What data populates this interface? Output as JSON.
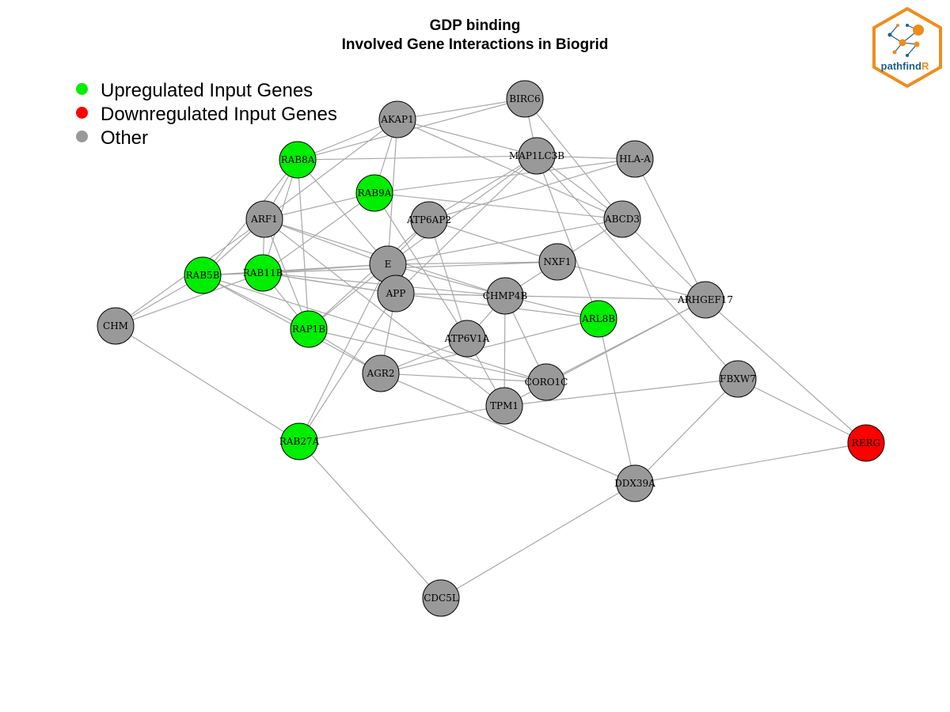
{
  "title": {
    "line1": "GDP binding",
    "line2": "Involved Gene Interactions in Biogrid"
  },
  "legend": [
    {
      "label": "Upregulated Input Genes",
      "color": "#00ee00"
    },
    {
      "label": "Downregulated Input Genes",
      "color": "#ff0000"
    },
    {
      "label": "Other",
      "color": "#999999"
    }
  ],
  "colors": {
    "up": "#00ee00",
    "down": "#ff0000",
    "other": "#999999",
    "edge": "#a8a8a8",
    "logo_orange": "#f08c1e",
    "logo_blue": "#1f5f8b"
  },
  "logo": {
    "text_main": "pathfind",
    "text_accent": "R"
  },
  "nodes": [
    {
      "id": "BIRC6",
      "label": "BIRC6",
      "status": "other"
    },
    {
      "id": "AKAP1",
      "label": "AKAP1",
      "status": "other"
    },
    {
      "id": "RAB8A",
      "label": "RAB8A",
      "status": "up"
    },
    {
      "id": "MAP1LC3B",
      "label": "MAP1LC3B",
      "status": "other"
    },
    {
      "id": "HLA-A",
      "label": "HLA-A",
      "status": "other"
    },
    {
      "id": "RAB9A",
      "label": "RAB9A",
      "status": "up"
    },
    {
      "id": "ARF1",
      "label": "ARF1",
      "status": "other"
    },
    {
      "id": "ATP6AP2",
      "label": "ATP6AP2",
      "status": "other"
    },
    {
      "id": "ABCD3",
      "label": "ABCD3",
      "status": "other"
    },
    {
      "id": "RAB5B",
      "label": "RAB5B",
      "status": "up"
    },
    {
      "id": "RAB11B",
      "label": "RAB11B",
      "status": "up"
    },
    {
      "id": "E",
      "label": "E",
      "status": "other"
    },
    {
      "id": "NXF1",
      "label": "NXF1",
      "status": "other"
    },
    {
      "id": "APP",
      "label": "APP",
      "status": "other"
    },
    {
      "id": "CHMP4B",
      "label": "CHMP4B",
      "status": "other"
    },
    {
      "id": "ARHGEF17",
      "label": "ARHGEF17",
      "status": "other"
    },
    {
      "id": "CHM",
      "label": "CHM",
      "status": "other"
    },
    {
      "id": "RAP1B",
      "label": "RAP1B",
      "status": "up"
    },
    {
      "id": "ARL8B",
      "label": "ARL8B",
      "status": "up"
    },
    {
      "id": "ATP6V1A",
      "label": "ATP6V1A",
      "status": "other"
    },
    {
      "id": "AGR2",
      "label": "AGR2",
      "status": "other"
    },
    {
      "id": "CORO1C",
      "label": "CORO1C",
      "status": "other"
    },
    {
      "id": "FBXW7",
      "label": "FBXW7",
      "status": "other"
    },
    {
      "id": "TPM1",
      "label": "TPM1",
      "status": "other"
    },
    {
      "id": "RAB27A",
      "label": "RAB27A",
      "status": "up"
    },
    {
      "id": "RERG",
      "label": "RERG",
      "status": "down"
    },
    {
      "id": "DDX39A",
      "label": "DDX39A",
      "status": "other"
    },
    {
      "id": "CDC5L",
      "label": "CDC5L",
      "status": "other"
    }
  ],
  "edges": [
    [
      "AKAP1",
      "BIRC6"
    ],
    [
      "AKAP1",
      "RAB8A"
    ],
    [
      "AKAP1",
      "RAB9A"
    ],
    [
      "AKAP1",
      "E"
    ],
    [
      "AKAP1",
      "ARF1"
    ],
    [
      "AKAP1",
      "ABCD3"
    ],
    [
      "AKAP1",
      "MAP1LC3B"
    ],
    [
      "BIRC6",
      "RAB8A"
    ],
    [
      "BIRC6",
      "MAP1LC3B"
    ],
    [
      "BIRC6",
      "ABCD3"
    ],
    [
      "RAB8A",
      "MAP1LC3B"
    ],
    [
      "RAB8A",
      "ARF1"
    ],
    [
      "RAB8A",
      "RAB5B"
    ],
    [
      "RAB8A",
      "RAB11B"
    ],
    [
      "RAB8A",
      "RAP1B"
    ],
    [
      "RAB8A",
      "E"
    ],
    [
      "MAP1LC3B",
      "HLA-A"
    ],
    [
      "MAP1LC3B",
      "ABCD3"
    ],
    [
      "MAP1LC3B",
      "ATP6AP2"
    ],
    [
      "MAP1LC3B",
      "E"
    ],
    [
      "MAP1LC3B",
      "APP"
    ],
    [
      "MAP1LC3B",
      "ARL8B"
    ],
    [
      "MAP1LC3B",
      "FBXW7"
    ],
    [
      "HLA-A",
      "RAB9A"
    ],
    [
      "HLA-A",
      "ARHGEF17"
    ],
    [
      "HLA-A",
      "ATP6AP2"
    ],
    [
      "RAB9A",
      "ARF1"
    ],
    [
      "RAB9A",
      "ABCD3"
    ],
    [
      "RAB9A",
      "RAB11B"
    ],
    [
      "RAB9A",
      "ATP6V1A"
    ],
    [
      "ARF1",
      "RAB5B"
    ],
    [
      "ARF1",
      "RAB11B"
    ],
    [
      "ARF1",
      "E"
    ],
    [
      "ARF1",
      "RAP1B"
    ],
    [
      "ARF1",
      "CHM"
    ],
    [
      "ARF1",
      "CHMP4B"
    ],
    [
      "ARF1",
      "TPM1"
    ],
    [
      "ATP6AP2",
      "E"
    ],
    [
      "ATP6AP2",
      "NXF1"
    ],
    [
      "ATP6AP2",
      "ATP6V1A"
    ],
    [
      "ATP6AP2",
      "RAP1B"
    ],
    [
      "ABCD3",
      "NXF1"
    ],
    [
      "ABCD3",
      "ARHGEF17"
    ],
    [
      "ABCD3",
      "E"
    ],
    [
      "RAB5B",
      "RAB11B"
    ],
    [
      "RAB5B",
      "CHM"
    ],
    [
      "RAB5B",
      "E"
    ],
    [
      "RAB5B",
      "RAP1B"
    ],
    [
      "RAB5B",
      "AGR2"
    ],
    [
      "RAB5B",
      "CORO1C"
    ],
    [
      "RAB11B",
      "E"
    ],
    [
      "RAB11B",
      "NXF1"
    ],
    [
      "RAB11B",
      "APP"
    ],
    [
      "RAB11B",
      "CHMP4B"
    ],
    [
      "RAB11B",
      "CHM"
    ],
    [
      "RAB11B",
      "RAP1B"
    ],
    [
      "E",
      "NXF1"
    ],
    [
      "E",
      "CHMP4B"
    ],
    [
      "E",
      "RAB27A"
    ],
    [
      "E",
      "RAP1B"
    ],
    [
      "APP",
      "RAB11B"
    ],
    [
      "APP",
      "CHMP4B"
    ],
    [
      "APP",
      "ARHGEF17"
    ],
    [
      "APP",
      "ARL8B"
    ],
    [
      "APP",
      "RAB27A"
    ],
    [
      "APP",
      "AGR2"
    ],
    [
      "NXF1",
      "CHMP4B"
    ],
    [
      "NXF1",
      "ARHGEF17"
    ],
    [
      "CHMP4B",
      "ARL8B"
    ],
    [
      "CHMP4B",
      "CORO1C"
    ],
    [
      "CHMP4B",
      "TPM1"
    ],
    [
      "CHMP4B",
      "ATP6V1A"
    ],
    [
      "ARHGEF17",
      "CORO1C"
    ],
    [
      "ARHGEF17",
      "TPM1"
    ],
    [
      "ARHGEF17",
      "RERG"
    ],
    [
      "CHM",
      "RAB27A"
    ],
    [
      "RAP1B",
      "AGR2"
    ],
    [
      "RAP1B",
      "CORO1C"
    ],
    [
      "ARL8B",
      "DDX39A"
    ],
    [
      "ARL8B",
      "AGR2"
    ],
    [
      "ATP6V1A",
      "AGR2"
    ],
    [
      "ATP6V1A",
      "TPM1"
    ],
    [
      "AGR2",
      "CORO1C"
    ],
    [
      "AGR2",
      "DDX39A"
    ],
    [
      "FBXW7",
      "TPM1"
    ],
    [
      "FBXW7",
      "RERG"
    ],
    [
      "FBXW7",
      "DDX39A"
    ],
    [
      "TPM1",
      "RAB27A"
    ],
    [
      "RAB27A",
      "CDC5L"
    ],
    [
      "DDX39A",
      "RERG"
    ],
    [
      "DDX39A",
      "CDC5L"
    ]
  ]
}
